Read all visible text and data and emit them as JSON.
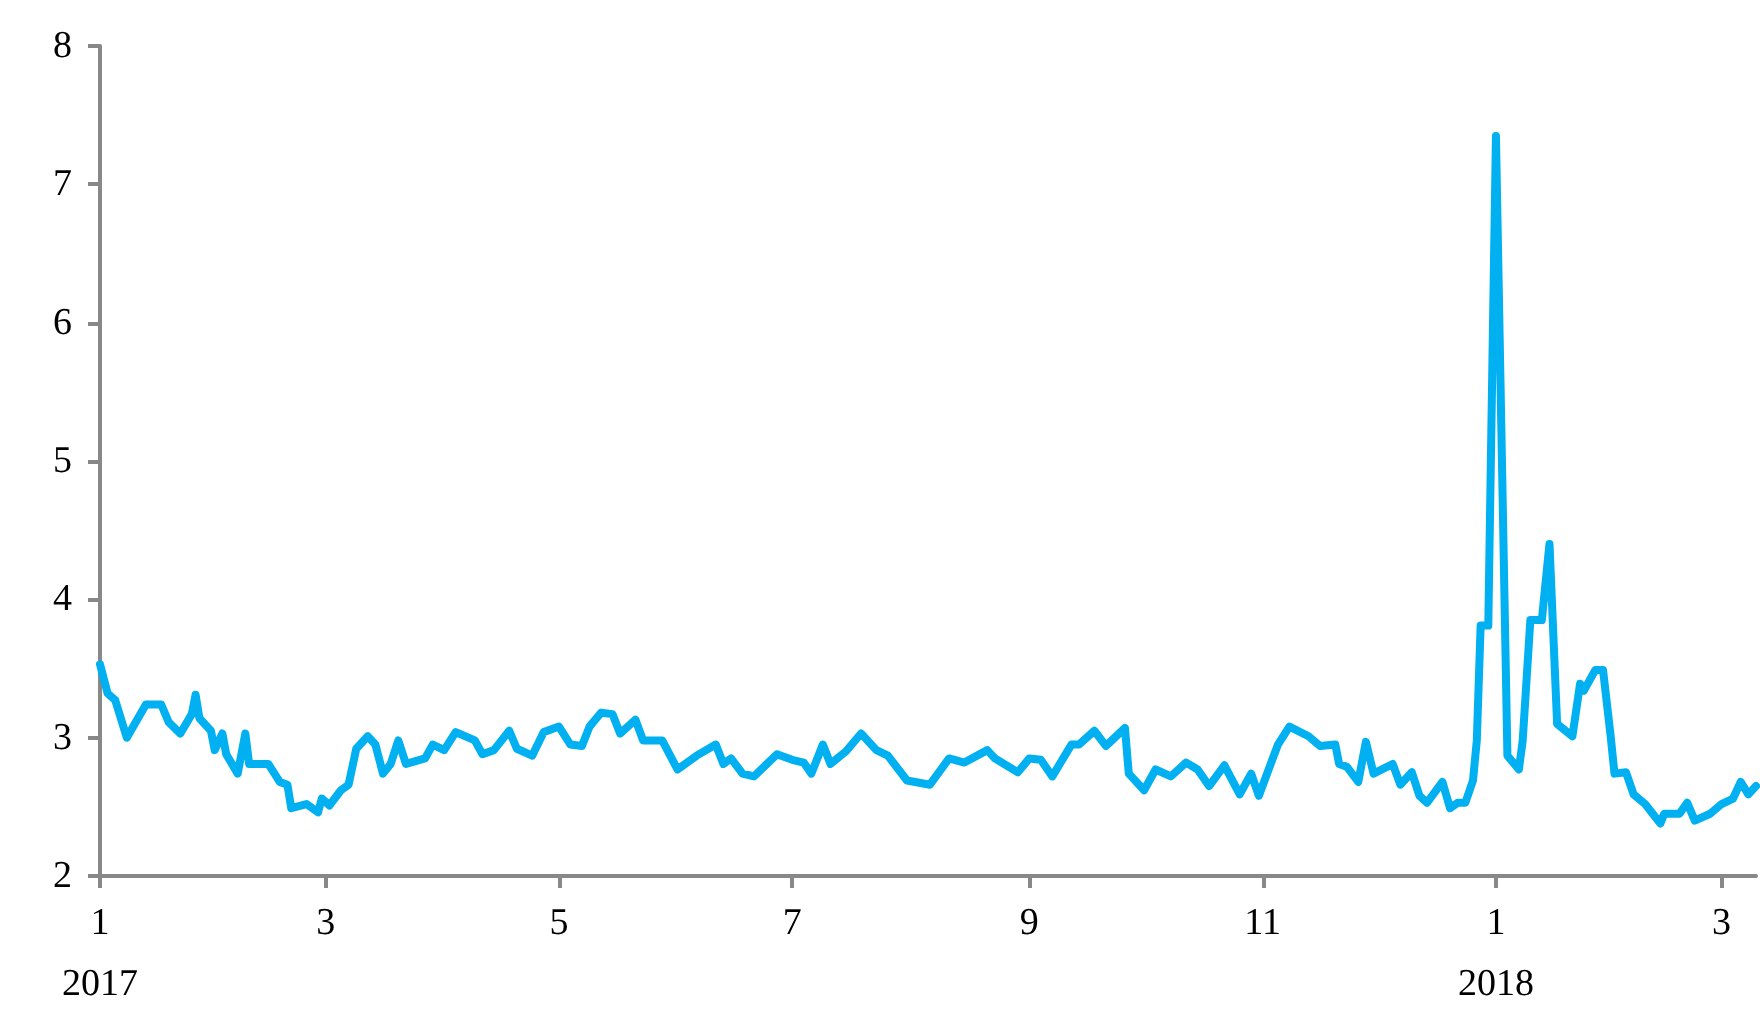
{
  "chart_data": {
    "type": "line",
    "x": [
      "2017-01-01",
      "2017-01-03",
      "2017-01-05",
      "2017-01-08",
      "2017-01-13",
      "2017-01-17",
      "2017-01-19",
      "2017-01-22",
      "2017-01-25",
      "2017-01-26",
      "2017-01-27",
      "2017-01-30",
      "2017-01-31",
      "2017-02-02",
      "2017-02-03",
      "2017-02-06",
      "2017-02-08",
      "2017-02-09",
      "2017-02-14",
      "2017-02-17",
      "2017-02-19",
      "2017-02-20",
      "2017-02-24",
      "2017-02-27",
      "2017-02-28",
      "2017-03-02",
      "2017-03-05",
      "2017-03-07",
      "2017-03-09",
      "2017-03-12",
      "2017-03-14",
      "2017-03-16",
      "2017-03-18",
      "2017-03-20",
      "2017-03-22",
      "2017-03-27",
      "2017-03-29",
      "2017-04-01",
      "2017-04-04",
      "2017-04-09",
      "2017-04-11",
      "2017-04-14",
      "2017-04-18",
      "2017-04-20",
      "2017-04-24",
      "2017-04-27",
      "2017-05-01",
      "2017-05-04",
      "2017-05-07",
      "2017-05-09",
      "2017-05-12",
      "2017-05-15",
      "2017-05-17",
      "2017-05-21",
      "2017-05-23",
      "2017-05-28",
      "2017-06-01",
      "2017-06-06",
      "2017-06-11",
      "2017-06-13",
      "2017-06-15",
      "2017-06-18",
      "2017-06-21",
      "2017-06-27",
      "2017-07-01",
      "2017-07-04",
      "2017-07-06",
      "2017-07-09",
      "2017-07-11",
      "2017-07-15",
      "2017-07-19",
      "2017-07-23",
      "2017-07-26",
      "2017-07-31",
      "2017-08-06",
      "2017-08-11",
      "2017-08-15",
      "2017-08-21",
      "2017-08-23",
      "2017-08-29",
      "2017-09-01",
      "2017-09-04",
      "2017-09-07",
      "2017-09-12",
      "2017-09-14",
      "2017-09-18",
      "2017-09-21",
      "2017-09-26",
      "2017-09-27",
      "2017-10-01",
      "2017-10-04",
      "2017-10-08",
      "2017-10-12",
      "2017-10-15",
      "2017-10-18",
      "2017-10-22",
      "2017-10-26",
      "2017-10-29",
      "2017-10-31",
      "2017-11-05",
      "2017-11-08",
      "2017-11-13",
      "2017-11-16",
      "2017-11-20",
      "2017-11-21",
      "2017-11-23",
      "2017-11-26",
      "2017-11-28",
      "2017-11-30",
      "2017-12-05",
      "2017-12-07",
      "2017-12-10",
      "2017-12-12",
      "2017-12-14",
      "2017-12-18",
      "2017-12-20",
      "2017-12-22",
      "2017-12-24",
      "2017-12-26",
      "2017-12-27",
      "2017-12-28",
      "2017-12-30",
      "2018-01-01",
      "2018-01-04",
      "2018-01-07",
      "2018-01-08",
      "2018-01-10",
      "2018-01-13",
      "2018-01-15",
      "2018-01-17",
      "2018-01-21",
      "2018-01-23",
      "2018-01-24",
      "2018-01-27",
      "2018-01-29",
      "2018-01-31",
      "2018-02-01",
      "2018-02-04",
      "2018-02-06",
      "2018-02-09",
      "2018-02-13",
      "2018-02-14",
      "2018-02-18",
      "2018-02-20",
      "2018-02-22",
      "2018-02-26",
      "2018-03-01",
      "2018-03-04",
      "2018-03-06",
      "2018-03-08",
      "2018-03-10"
    ],
    "series": [
      {
        "color": "#00b0f0",
        "values": [
          3.53,
          3.32,
          3.27,
          3.0,
          3.24,
          3.24,
          3.11,
          3.03,
          3.17,
          3.31,
          3.14,
          3.05,
          2.91,
          3.03,
          2.88,
          2.74,
          3.03,
          2.81,
          2.81,
          2.68,
          2.66,
          2.49,
          2.52,
          2.46,
          2.56,
          2.51,
          2.62,
          2.66,
          2.92,
          3.01,
          2.95,
          2.74,
          2.81,
          2.98,
          2.81,
          2.85,
          2.95,
          2.91,
          3.04,
          2.98,
          2.88,
          2.91,
          3.05,
          2.92,
          2.87,
          3.04,
          3.08,
          2.95,
          2.94,
          3.08,
          3.18,
          3.17,
          3.03,
          3.13,
          2.98,
          2.98,
          2.77,
          2.87,
          2.95,
          2.81,
          2.85,
          2.74,
          2.72,
          2.88,
          2.84,
          2.82,
          2.74,
          2.95,
          2.81,
          2.9,
          3.03,
          2.91,
          2.87,
          2.69,
          2.66,
          2.85,
          2.82,
          2.91,
          2.85,
          2.75,
          2.85,
          2.84,
          2.72,
          2.95,
          2.95,
          3.05,
          2.94,
          3.07,
          2.74,
          2.62,
          2.77,
          2.72,
          2.82,
          2.77,
          2.65,
          2.8,
          2.59,
          2.74,
          2.58,
          2.95,
          3.08,
          3.01,
          2.94,
          2.95,
          2.81,
          2.79,
          2.68,
          2.97,
          2.74,
          2.81,
          2.66,
          2.75,
          2.58,
          2.53,
          2.68,
          2.49,
          2.53,
          2.53,
          2.69,
          2.98,
          3.81,
          3.81,
          7.35,
          2.87,
          2.77,
          2.98,
          3.85,
          3.85,
          4.4,
          3.1,
          3.01,
          3.39,
          3.34,
          3.49,
          3.49,
          3.01,
          2.74,
          2.75,
          2.59,
          2.52,
          2.38,
          2.45,
          2.45,
          2.53,
          2.4,
          2.45,
          2.52,
          2.56,
          2.68,
          2.59,
          2.65
        ]
      }
    ],
    "xlim": [
      "2017-01-01",
      "2018-03-10"
    ],
    "xticks": [
      {
        "value": "2017-01-01",
        "label": "1"
      },
      {
        "value": "2017-03-01",
        "label": "3"
      },
      {
        "value": "2017-05-01",
        "label": "5"
      },
      {
        "value": "2017-07-01",
        "label": "7"
      },
      {
        "value": "2017-09-01",
        "label": "9"
      },
      {
        "value": "2017-11-01",
        "label": "11"
      },
      {
        "value": "2018-01-01",
        "label": "1"
      },
      {
        "value": "2018-03-01",
        "label": "3"
      }
    ],
    "annotations": [
      "2017",
      "2018"
    ],
    "ylim": [
      2,
      8
    ],
    "yticks": [
      2,
      3,
      4,
      5,
      6,
      7,
      8
    ],
    "grid": false,
    "marker": "none",
    "line_style": "solid"
  }
}
